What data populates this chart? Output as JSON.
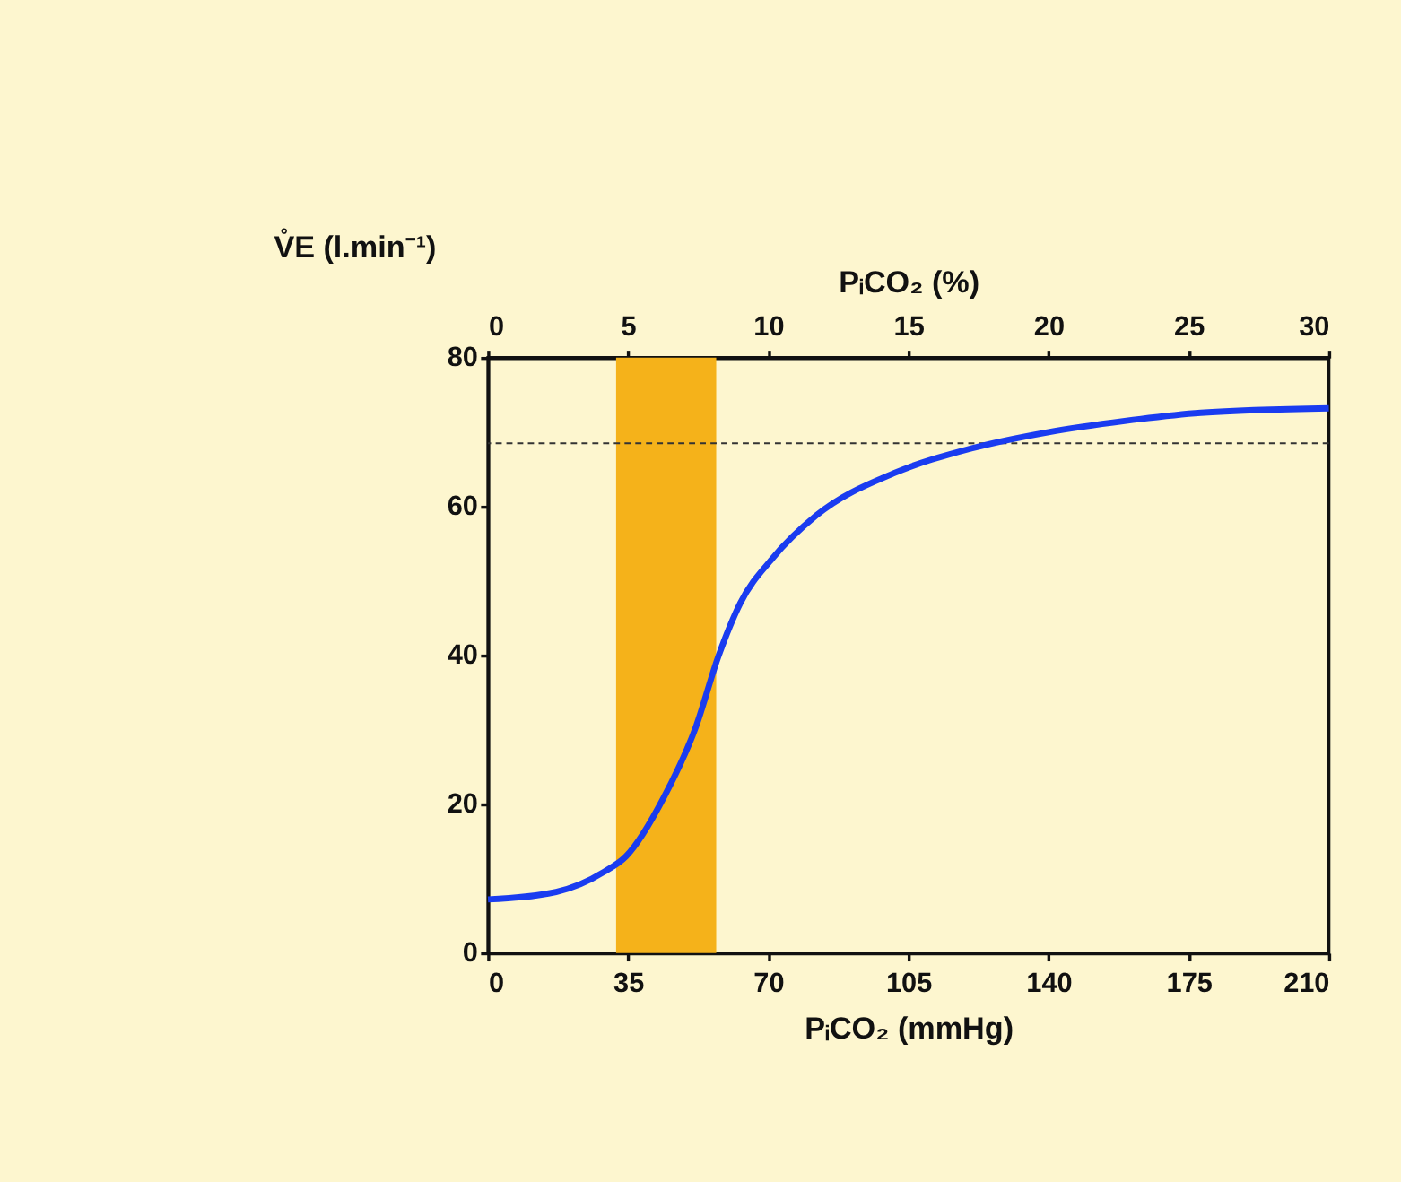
{
  "chart_data": {
    "type": "line",
    "xlabel": "PᵢCO₂  (mmHg)",
    "x2label": "PᵢCO₂  (%)",
    "ylabel": "V̊E (l.min⁻¹)",
    "xlim": [
      0,
      210
    ],
    "xticks": [
      0,
      35,
      70,
      105,
      140,
      175,
      210
    ],
    "x2lim": [
      0,
      30
    ],
    "x2ticks": [
      0,
      5,
      10,
      15,
      20,
      25,
      30
    ],
    "ylim": [
      0,
      80
    ],
    "yticks": [
      0,
      20,
      40,
      60,
      80
    ],
    "grid": false,
    "series": [
      {
        "color": "#1a3cf0",
        "x": [
          0,
          17,
          29,
          34.5,
          44,
          52,
          57.5,
          63,
          71,
          82,
          101.5,
          120.7,
          140,
          159,
          178,
          210
        ],
        "values": [
          7.2,
          8.2,
          10.9,
          13,
          21,
          30.5,
          39.8,
          47,
          53,
          58.8,
          64.5,
          67.8,
          70,
          71.5,
          72.6,
          73.2
        ]
      }
    ],
    "bands": [
      {
        "axis": "x",
        "from": 32,
        "to": 57,
        "color": "#f5b21a"
      }
    ],
    "ref_lines": [
      {
        "axis": "y",
        "value": 68.5,
        "line_style": "dashed",
        "color": "#333333"
      }
    ]
  }
}
